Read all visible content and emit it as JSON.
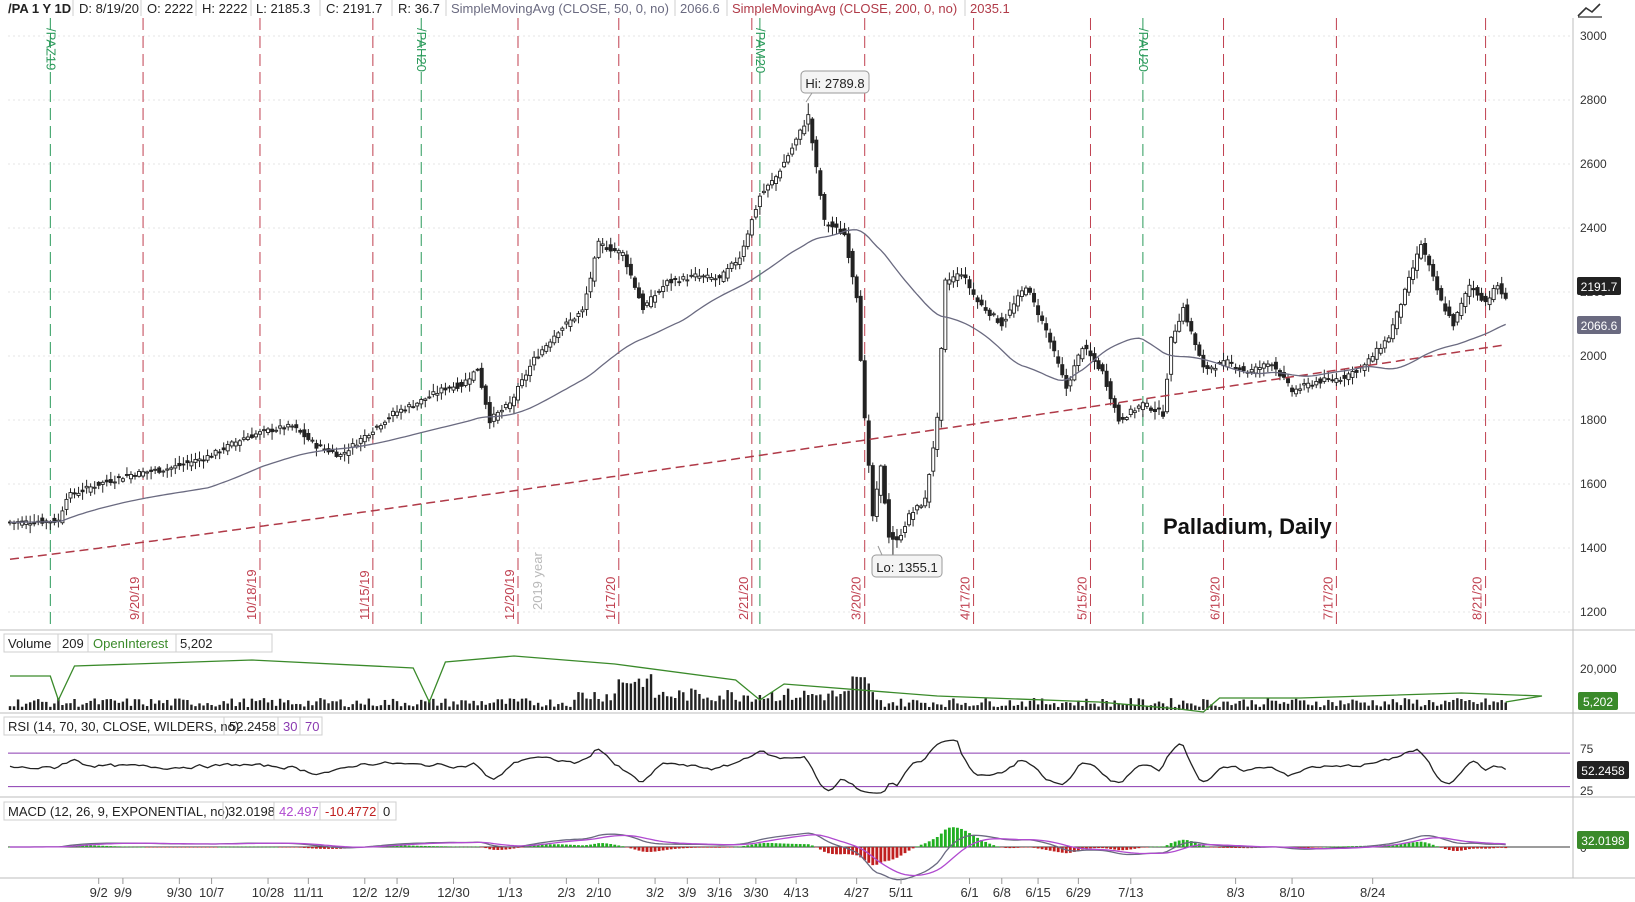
{
  "header": {
    "symbol": "/PA 1 Y 1D",
    "date": "D: 8/19/20",
    "open": "O: 2222",
    "high": "H: 2222",
    "low": "L: 2185.3",
    "close": "C: 2191.7",
    "range": "R: 36.7",
    "sma50_label": "SimpleMovingAvg (CLOSE, 50, 0, no)",
    "sma50_value": "2066.6",
    "sma200_label": "SimpleMovingAvg (CLOSE, 200, 0, no)",
    "sma200_value": "2035.1"
  },
  "colors": {
    "candle": "#222222",
    "sma50": "#6a6a80",
    "sma200": "#b03a48",
    "open_interest": "#3a8a2a",
    "rsi": "#222222",
    "rsi_band": "#8a3ab0",
    "macd": "#6a6a80",
    "macd_signal": "#b04ad0",
    "hist_up": "#22b022",
    "hist_down": "#c02020",
    "roll_line": "#2a9a5a",
    "expiry_line": "#c04050"
  },
  "annotation": "Palladium, Daily",
  "chart_data": [
    {
      "type": "candlestick",
      "symbol": "/PA",
      "ylim": [
        1150,
        3050
      ],
      "y_ticks": [
        1200,
        1400,
        1600,
        1800,
        2000,
        2200,
        2400,
        2600,
        2800,
        3000
      ],
      "x_ticks": [
        "9/2",
        "9/9",
        "9/30",
        "10/7",
        "10/28",
        "11/11",
        "12/2",
        "12/9",
        "12/30",
        "1/13",
        "2/3",
        "2/10",
        "3/2",
        "3/9",
        "3/16",
        "3/30",
        "4/13",
        "4/27",
        "5/11",
        "6/1",
        "6/8",
        "6/15",
        "6/29",
        "7/13",
        "8/3",
        "8/10",
        "8/24"
      ],
      "close_path": [
        [
          0,
          1480
        ],
        [
          12,
          1485
        ],
        [
          14,
          1560
        ],
        [
          22,
          1600
        ],
        [
          30,
          1630
        ],
        [
          40,
          1650
        ],
        [
          50,
          1690
        ],
        [
          58,
          1745
        ],
        [
          65,
          1770
        ],
        [
          70,
          1780
        ],
        [
          76,
          1720
        ],
        [
          82,
          1690
        ],
        [
          88,
          1750
        ],
        [
          95,
          1820
        ],
        [
          102,
          1860
        ],
        [
          108,
          1900
        ],
        [
          112,
          1910
        ],
        [
          116,
          1960
        ],
        [
          119,
          1800
        ],
        [
          124,
          1850
        ],
        [
          130,
          1990
        ],
        [
          136,
          2080
        ],
        [
          142,
          2140
        ],
        [
          146,
          2350
        ],
        [
          152,
          2320
        ],
        [
          157,
          2150
        ],
        [
          163,
          2230
        ],
        [
          170,
          2250
        ],
        [
          176,
          2240
        ],
        [
          181,
          2310
        ],
        [
          186,
          2500
        ],
        [
          190,
          2560
        ],
        [
          194,
          2650
        ],
        [
          198,
          2750
        ],
        [
          202,
          2420
        ],
        [
          207,
          2380
        ],
        [
          210,
          2190
        ],
        [
          212,
          1800
        ],
        [
          214,
          1500
        ],
        [
          216,
          1650
        ],
        [
          218,
          1440
        ],
        [
          220,
          1420
        ],
        [
          223,
          1500
        ],
        [
          227,
          1550
        ],
        [
          230,
          1800
        ],
        [
          232,
          2230
        ],
        [
          236,
          2260
        ],
        [
          240,
          2170
        ],
        [
          246,
          2100
        ],
        [
          252,
          2220
        ],
        [
          257,
          2080
        ],
        [
          262,
          1900
        ],
        [
          266,
          2030
        ],
        [
          271,
          1950
        ],
        [
          275,
          1800
        ],
        [
          281,
          1850
        ],
        [
          286,
          1820
        ],
        [
          288,
          2050
        ],
        [
          291,
          2150
        ],
        [
          296,
          1960
        ],
        [
          302,
          1980
        ],
        [
          307,
          1950
        ],
        [
          313,
          1980
        ],
        [
          318,
          1890
        ],
        [
          324,
          1920
        ],
        [
          330,
          1930
        ],
        [
          336,
          1970
        ],
        [
          342,
          2060
        ],
        [
          346,
          2200
        ],
        [
          350,
          2350
        ],
        [
          355,
          2170
        ],
        [
          358,
          2100
        ],
        [
          362,
          2220
        ],
        [
          366,
          2170
        ],
        [
          369,
          2220
        ],
        [
          372,
          2150
        ],
        [
          375,
          2190
        ]
      ],
      "hi_label": "Hi: 2789.8",
      "lo_label": "Lo: 1355.1",
      "last_label": "2191.7",
      "sma50_last": "2066.6",
      "roll_labels": [
        "/PAZ19",
        "/PAH20",
        "/PAM20",
        "/PAU20"
      ],
      "expiry_labels": [
        "9/20/19",
        "10/18/19",
        "11/15/19",
        "12/20/19",
        "1/17/20",
        "2/21/20",
        "3/20/20",
        "4/17/20",
        "5/15/20",
        "6/19/20",
        "7/17/20",
        "8/21/20"
      ],
      "year_label": "2019 year"
    },
    {
      "type": "bar",
      "name": "Volume",
      "header_label": "Volume",
      "value": "209",
      "oi_label": "OpenInterest",
      "oi_value": "5,202",
      "axis_label": "20,000",
      "last_label": "5,202"
    },
    {
      "type": "line",
      "name": "RSI",
      "header_label": "RSI (14, 70, 30, CLOSE, WILDERS, no)",
      "value": "52.2458",
      "band_low": "30",
      "band_high": "70",
      "ylim": [
        20,
        88
      ],
      "ticks": [
        "75",
        "25"
      ],
      "last_label": "52.2458"
    },
    {
      "type": "line",
      "name": "MACD",
      "header_label": "MACD (12, 26, 9, EXPONENTIAL, no)",
      "value": "32.0198",
      "avg": "42.497",
      "diff": "-10.4772",
      "zero": "0",
      "zero_tick": "0",
      "last_label": "32.0198"
    }
  ]
}
